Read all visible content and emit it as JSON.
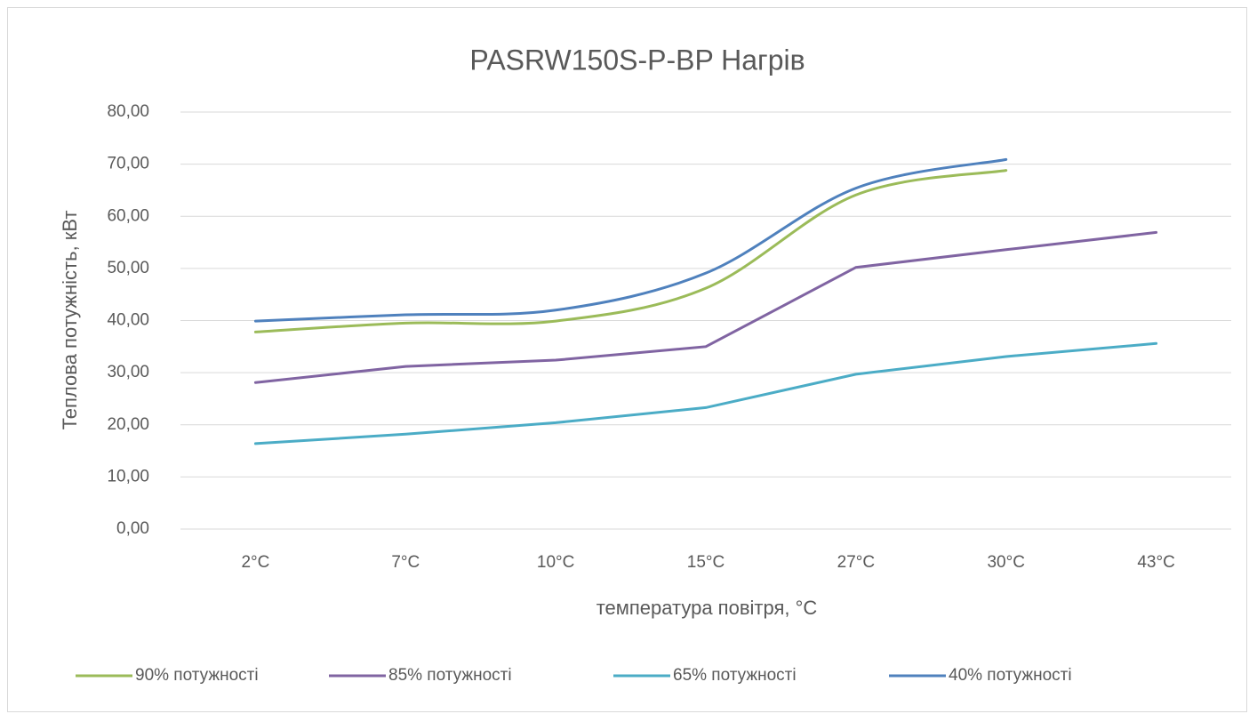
{
  "chart_data": {
    "type": "line",
    "title": "PASRW150S-P-BP Нагрів",
    "x_label": "температура повітря, °C",
    "y_label": "Теплова потужність, кВт",
    "categories": [
      "2°C",
      "7°C",
      "10°C",
      "15°C",
      "27°C",
      "30°C",
      "43°C"
    ],
    "series": [
      {
        "name": "90% потужності",
        "color": "#9bbb59",
        "smooth": true,
        "values": [
          37.8,
          39.5,
          39.9,
          46.2,
          64.1,
          68.8,
          null
        ]
      },
      {
        "name": "85% потужності",
        "color": "#8064a2",
        "smooth": false,
        "values": [
          28.1,
          31.2,
          32.4,
          35.0,
          50.2,
          53.6,
          56.9
        ]
      },
      {
        "name": "65% потужності",
        "color": "#4bacc6",
        "smooth": false,
        "values": [
          16.4,
          18.2,
          20.4,
          23.3,
          29.7,
          33.1,
          35.6
        ]
      },
      {
        "name": "40% потужності",
        "color": "#4f81bd",
        "smooth": true,
        "values": [
          39.9,
          41.1,
          42.0,
          49.1,
          65.4,
          70.9,
          null
        ]
      }
    ],
    "ylim": [
      0,
      80
    ],
    "yticks": [
      {
        "value": 0,
        "label": "0,00"
      },
      {
        "value": 10,
        "label": "10,00"
      },
      {
        "value": 20,
        "label": "20,00"
      },
      {
        "value": 30,
        "label": "30,00"
      },
      {
        "value": 40,
        "label": "40,00"
      },
      {
        "value": 50,
        "label": "50,00"
      },
      {
        "value": 60,
        "label": "60,00"
      },
      {
        "value": 70,
        "label": "70,00"
      },
      {
        "value": 80,
        "label": "80,00"
      }
    ],
    "grid": true,
    "legend": "bottom"
  }
}
